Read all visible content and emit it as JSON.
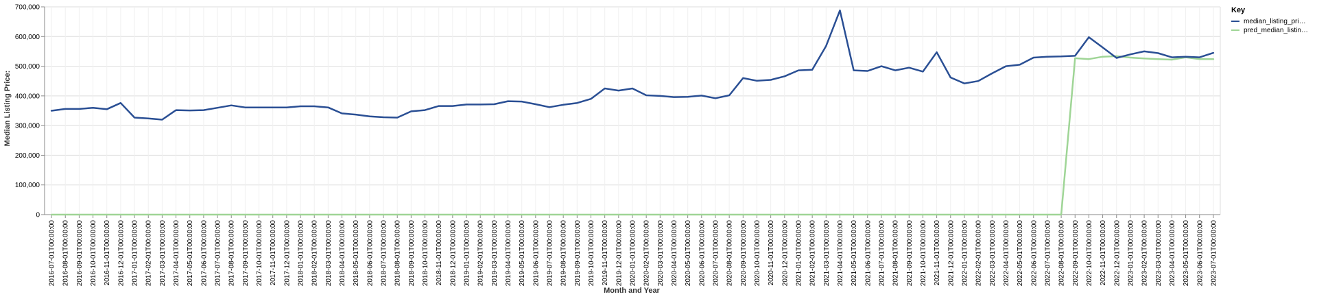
{
  "chart_data": {
    "type": "line",
    "xlabel": "Month and Year",
    "ylabel": "Median Listing Price:",
    "ylim": [
      0,
      700000
    ],
    "yticks": [
      0,
      100000,
      200000,
      300000,
      400000,
      500000,
      600000,
      700000
    ],
    "ytick_labels": [
      "0",
      "100,000",
      "200,000",
      "300,000",
      "400,000",
      "500,000",
      "600,000",
      "700,000"
    ],
    "grid": true,
    "legend": {
      "title": "Key",
      "position": "top-right",
      "entries": [
        "median_listing_pri…",
        "pred_median_listin…"
      ]
    },
    "categories": [
      "2016-07-01T00:00:00",
      "2016-08-01T00:00:00",
      "2016-09-01T00:00:00",
      "2016-10-01T00:00:00",
      "2016-11-01T00:00:00",
      "2016-12-01T00:00:00",
      "2017-01-01T00:00:00",
      "2017-02-01T00:00:00",
      "2017-03-01T00:00:00",
      "2017-04-01T00:00:00",
      "2017-05-01T00:00:00",
      "2017-06-01T00:00:00",
      "2017-07-01T00:00:00",
      "2017-08-01T00:00:00",
      "2017-09-01T00:00:00",
      "2017-10-01T00:00:00",
      "2017-11-01T00:00:00",
      "2017-12-01T00:00:00",
      "2018-01-01T00:00:00",
      "2018-02-01T00:00:00",
      "2018-03-01T00:00:00",
      "2018-04-01T00:00:00",
      "2018-05-01T00:00:00",
      "2018-06-01T00:00:00",
      "2018-07-01T00:00:00",
      "2018-08-01T00:00:00",
      "2018-09-01T00:00:00",
      "2018-10-01T00:00:00",
      "2018-11-01T00:00:00",
      "2018-12-01T00:00:00",
      "2019-01-01T00:00:00",
      "2019-02-01T00:00:00",
      "2019-03-01T00:00:00",
      "2019-04-01T00:00:00",
      "2019-05-01T00:00:00",
      "2019-06-01T00:00:00",
      "2019-07-01T00:00:00",
      "2019-08-01T00:00:00",
      "2019-09-01T00:00:00",
      "2019-10-01T00:00:00",
      "2019-11-01T00:00:00",
      "2019-12-01T00:00:00",
      "2020-01-01T00:00:00",
      "2020-02-01T00:00:00",
      "2020-03-01T00:00:00",
      "2020-04-01T00:00:00",
      "2020-05-01T00:00:00",
      "2020-06-01T00:00:00",
      "2020-07-01T00:00:00",
      "2020-08-01T00:00:00",
      "2020-09-01T00:00:00",
      "2020-10-01T00:00:00",
      "2020-11-01T00:00:00",
      "2020-12-01T00:00:00",
      "2021-01-01T00:00:00",
      "2021-02-01T00:00:00",
      "2021-03-01T00:00:00",
      "2021-04-01T00:00:00",
      "2021-05-01T00:00:00",
      "2021-06-01T00:00:00",
      "2021-07-01T00:00:00",
      "2021-08-01T00:00:00",
      "2021-09-01T00:00:00",
      "2021-10-01T00:00:00",
      "2021-11-01T00:00:00",
      "2021-12-01T00:00:00",
      "2022-01-01T00:00:00",
      "2022-02-01T00:00:00",
      "2022-03-01T00:00:00",
      "2022-04-01T00:00:00",
      "2022-05-01T00:00:00",
      "2022-06-01T00:00:00",
      "2022-07-01T00:00:00",
      "2022-08-01T00:00:00",
      "2022-09-01T00:00:00",
      "2022-10-01T00:00:00",
      "2022-11-01T00:00:00",
      "2022-12-01T00:00:00",
      "2023-01-01T00:00:00",
      "2023-02-01T00:00:00",
      "2023-03-01T00:00:00",
      "2023-04-01T00:00:00",
      "2023-05-01T00:00:00",
      "2023-06-01T00:00:00",
      "2023-07-01T00:00:00"
    ],
    "series": [
      {
        "name": "median_listing_pri…",
        "color": "#2a4f94",
        "values": [
          350000,
          356000,
          356000,
          360000,
          355000,
          376000,
          327000,
          324000,
          320000,
          352000,
          351000,
          352000,
          360000,
          368000,
          361000,
          361000,
          361000,
          361000,
          365000,
          365000,
          361000,
          341000,
          337000,
          331000,
          328000,
          327000,
          348000,
          352000,
          366000,
          366000,
          371000,
          371000,
          372000,
          382000,
          381000,
          372000,
          362000,
          370000,
          376000,
          390000,
          425000,
          418000,
          425000,
          402000,
          400000,
          396000,
          397000,
          401000,
          392000,
          402000,
          460000,
          451000,
          454000,
          466000,
          486000,
          488000,
          568000,
          688000,
          486000,
          484000,
          500000,
          486000,
          495000,
          482000,
          547000,
          462000,
          442000,
          450000,
          476000,
          500000,
          505000,
          529000,
          532000,
          533000,
          535000,
          598000,
          563000,
          528000,
          540000,
          550000,
          544000,
          530000,
          532000,
          530000,
          545000
        ]
      },
      {
        "name": "pred_median_listin…",
        "color": "#9fd596",
        "values": [
          0,
          0,
          0,
          0,
          0,
          0,
          0,
          0,
          0,
          0,
          0,
          0,
          0,
          0,
          0,
          0,
          0,
          0,
          0,
          0,
          0,
          0,
          0,
          0,
          0,
          0,
          0,
          0,
          0,
          0,
          0,
          0,
          0,
          0,
          0,
          0,
          0,
          0,
          0,
          0,
          0,
          0,
          0,
          0,
          0,
          0,
          0,
          0,
          0,
          0,
          0,
          0,
          0,
          0,
          0,
          0,
          0,
          0,
          0,
          0,
          0,
          0,
          0,
          0,
          0,
          0,
          0,
          0,
          0,
          0,
          0,
          0,
          0,
          0,
          527000,
          524000,
          532000,
          534000,
          529000,
          526000,
          524000,
          522000,
          530000,
          524000,
          524000
        ]
      }
    ]
  }
}
